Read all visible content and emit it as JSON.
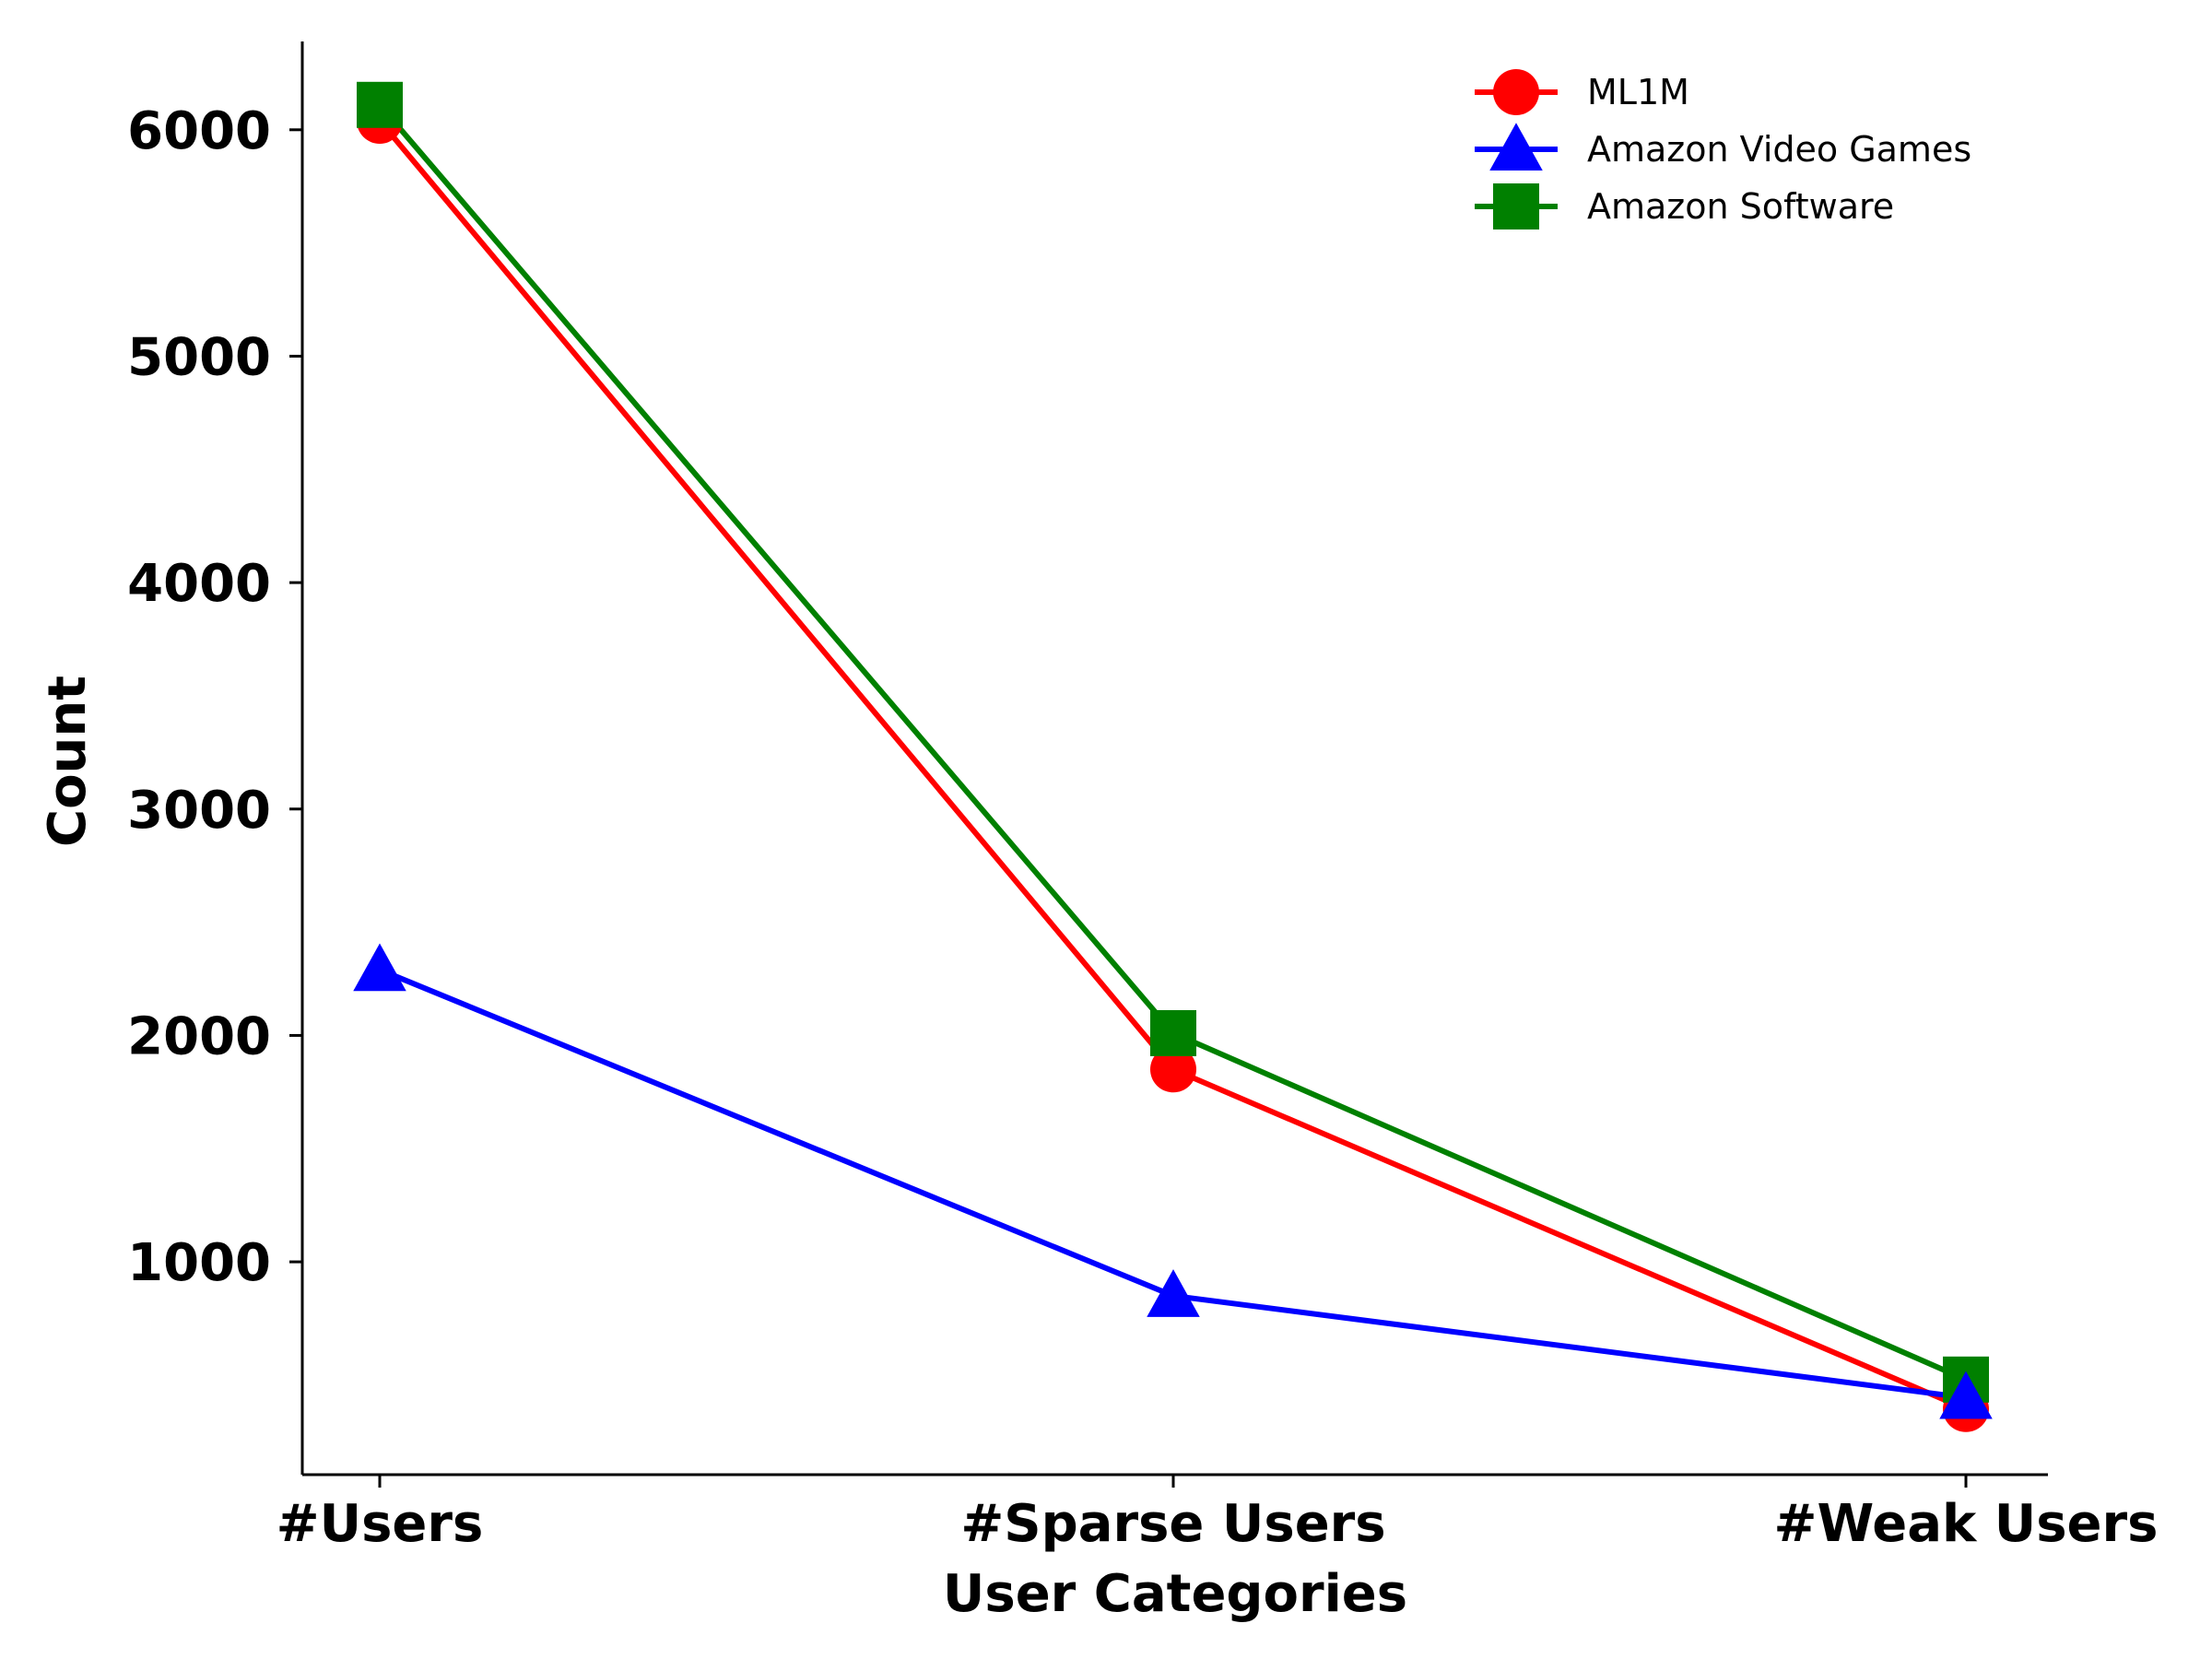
{
  "chart_data": {
    "type": "line",
    "categories": [
      "#Users",
      "#Sparse Users",
      "#Weak Users"
    ],
    "xlabel": "User Categories",
    "ylabel": "Count",
    "ylim": [
      60,
      6390
    ],
    "yticks": [
      1000,
      2000,
      3000,
      4000,
      5000,
      6000
    ],
    "grid": false,
    "legend_position": "top-right",
    "series": [
      {
        "name": "ML1M",
        "values": [
          6040,
          1850,
          350
        ],
        "color": "#ff0000",
        "marker": "circle"
      },
      {
        "name": "Amazon Video Games",
        "values": [
          2290,
          850,
          400
        ],
        "color": "#0000ff",
        "marker": "triangle"
      },
      {
        "name": "Amazon Software",
        "values": [
          6110,
          2010,
          480
        ],
        "color": "#008000",
        "marker": "square"
      }
    ]
  }
}
